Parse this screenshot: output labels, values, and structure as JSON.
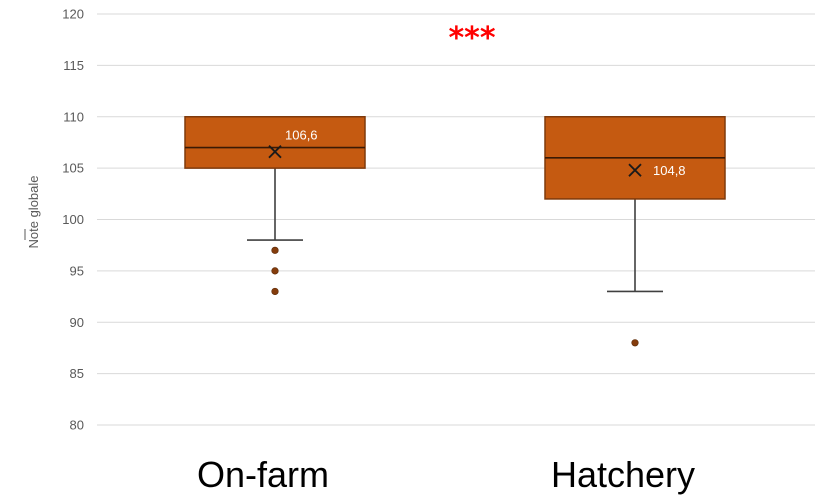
{
  "chart_data": {
    "type": "box",
    "title": "",
    "ylabel": "Note globale",
    "ylim": [
      80,
      120
    ],
    "y_ticks": [
      "120",
      "115",
      "110",
      "105",
      "100",
      "95",
      "90",
      "85",
      "80"
    ],
    "grid": true,
    "annotation": "***",
    "categories": [
      "On-farm",
      "Hatchery"
    ],
    "series": [
      {
        "category": "On-farm",
        "whisker_low": 98,
        "q1": 105,
        "median": 107,
        "q3": 110,
        "whisker_high": 110,
        "mean": 106.6,
        "mean_label": "106,6",
        "outliers": [
          97,
          95,
          93
        ]
      },
      {
        "category": "Hatchery",
        "whisker_low": 93,
        "q1": 102,
        "median": 106,
        "q3": 110,
        "whisker_high": 110,
        "mean": 104.8,
        "mean_label": "104,8",
        "outliers": [
          88
        ]
      }
    ],
    "colors": {
      "box_fill": "#C55A11",
      "box_stroke": "#7F3A0C",
      "line": "#404040",
      "grid": "#D9D9D9",
      "outlier": "#843C0C",
      "annotation": "#FF0000"
    }
  }
}
